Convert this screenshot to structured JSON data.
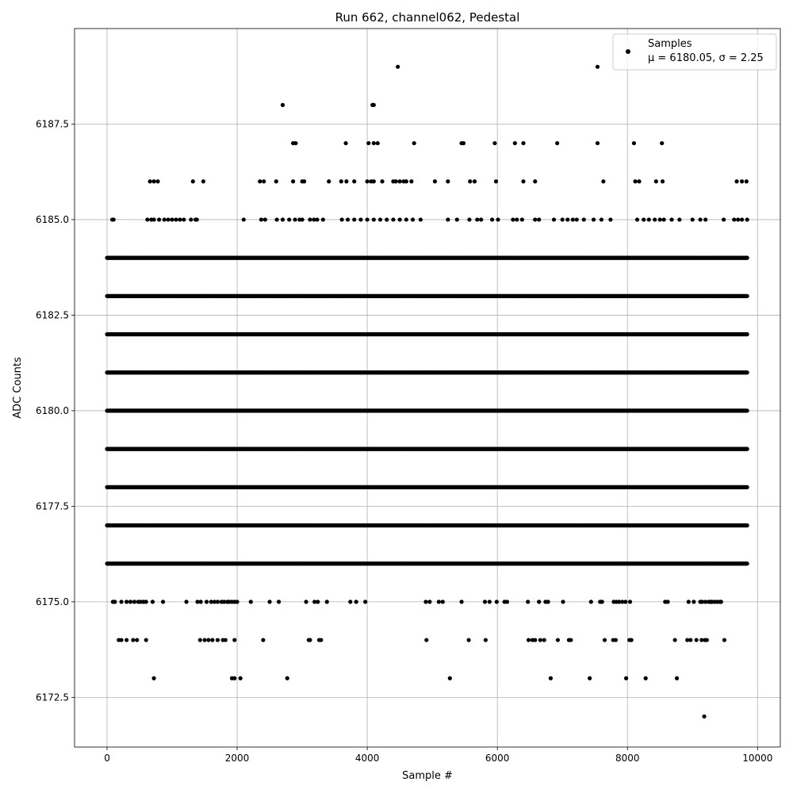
{
  "chart_data": {
    "type": "scatter",
    "title": "Run 662, channel062, Pedestal",
    "xlabel": "Sample #",
    "ylabel": "ADC Counts",
    "xlim": [
      -500,
      10350
    ],
    "ylim": [
      6171.2,
      6190.0
    ],
    "xticks": [
      0,
      2000,
      4000,
      6000,
      8000,
      10000
    ],
    "xtick_labels": [
      "0",
      "2000",
      "4000",
      "6000",
      "8000",
      "10000"
    ],
    "yticks": [
      6172.5,
      6175.0,
      6177.5,
      6180.0,
      6182.5,
      6185.0,
      6187.5
    ],
    "ytick_labels": [
      "6172.5",
      "6175.0",
      "6177.5",
      "6180.0",
      "6182.5",
      "6185.0",
      "6187.5"
    ],
    "grid": true,
    "legend_position": "top-right",
    "series": [
      {
        "name": "Samples",
        "stats_label": "μ = 6180.05, σ = 2.25",
        "color": "#000000",
        "marker": "circle",
        "n_samples": 9850,
        "sampling": "every 10th sample shown for levels 6176–6184; all visible outliers listed",
        "rows": [
          {
            "y": 6176,
            "step": 10,
            "x_start": 0,
            "x_end": 9840
          },
          {
            "y": 6177,
            "step": 10,
            "x_start": 0,
            "x_end": 9840
          },
          {
            "y": 6178,
            "step": 10,
            "x_start": 0,
            "x_end": 9840
          },
          {
            "y": 6179,
            "step": 10,
            "x_start": 0,
            "x_end": 9840
          },
          {
            "y": 6180,
            "step": 10,
            "x_start": 0,
            "x_end": 9840
          },
          {
            "y": 6181,
            "step": 10,
            "x_start": 0,
            "x_end": 9840
          },
          {
            "y": 6182,
            "step": 10,
            "x_start": 0,
            "x_end": 9840
          },
          {
            "y": 6183,
            "step": 10,
            "x_start": 0,
            "x_end": 9840
          },
          {
            "y": 6184,
            "step": 10,
            "x_start": 0,
            "x_end": 9840
          }
        ],
        "points": [
          {
            "y": 6172,
            "x": [
              9180
            ]
          },
          {
            "y": 6173,
            "x": [
              720,
              1920,
              1960,
              2050,
              2770,
              5270,
              6820,
              7420,
              7980,
              8280,
              8760
            ]
          },
          {
            "y": 6174,
            "x": [
              180,
              220,
              300,
              400,
              460,
              600,
              1430,
              1500,
              1560,
              1620,
              1700,
              1780,
              1820,
              1960,
              2400,
              3100,
              3120,
              3260,
              3290,
              4910,
              5560,
              5820,
              6480,
              6540,
              6580,
              6660,
              6720,
              6930,
              7100,
              7130,
              7650,
              7780,
              7820,
              8030,
              8060,
              8730,
              8920,
              8970,
              9060,
              9140,
              9190,
              9220,
              9490
            ]
          },
          {
            "y": 6175,
            "x": [
              90,
              120,
              220,
              300,
              360,
              420,
              480,
              520,
              560,
              600,
              700,
              860,
              1220,
              1390,
              1440,
              1530,
              1600,
              1650,
              1700,
              1760,
              1800,
              1850,
              1880,
              1920,
              1960,
              2000,
              2210,
              2500,
              2640,
              3060,
              3190,
              3240,
              3380,
              3740,
              3830,
              3970,
              4900,
              4960,
              5100,
              5160,
              5450,
              5810,
              5880,
              5990,
              6110,
              6150,
              6470,
              6640,
              6740,
              6780,
              7010,
              7440,
              7580,
              7610,
              7790,
              7830,
              7870,
              7920,
              7970,
              8040,
              8580,
              8620,
              8940,
              9020,
              9120,
              9150,
              9200,
              9250,
              9280,
              9300,
              9340,
              9380,
              9420,
              9440
            ]
          },
          {
            "y": 6185,
            "x": [
              80,
              100,
              620,
              680,
              720,
              800,
              880,
              940,
              1000,
              1060,
              1120,
              1180,
              1290,
              1360,
              1380,
              2100,
              2370,
              2430,
              2610,
              2700,
              2800,
              2890,
              2960,
              3000,
              3120,
              3180,
              3230,
              3320,
              3610,
              3700,
              3800,
              3900,
              4000,
              4100,
              4200,
              4300,
              4400,
              4500,
              4600,
              4700,
              4820,
              5240,
              5380,
              5570,
              5690,
              5750,
              5920,
              6010,
              6240,
              6300,
              6380,
              6580,
              6640,
              6870,
              7000,
              7080,
              7160,
              7220,
              7330,
              7480,
              7600,
              7740,
              8150,
              8250,
              8330,
              8420,
              8500,
              8560,
              8680,
              8800,
              9000,
              9120,
              9200,
              9480,
              9640,
              9700,
              9760,
              9840
            ]
          },
          {
            "y": 6186,
            "x": [
              660,
              720,
              780,
              1320,
              1480,
              2350,
              2410,
              2600,
              2860,
              3000,
              3030,
              3410,
              3600,
              3680,
              3800,
              4000,
              4060,
              4100,
              4230,
              4400,
              4440,
              4500,
              4560,
              4600,
              4680,
              5040,
              5240,
              5580,
              5650,
              5980,
              6400,
              6580,
              7630,
              8120,
              8180,
              8440,
              8540,
              9680,
              9760,
              9830
            ]
          },
          {
            "y": 6187,
            "x": [
              2860,
              2900,
              3670,
              4020,
              4100,
              4160,
              4720,
              5450,
              5480,
              5960,
              6270,
              6400,
              6920,
              7540,
              8100,
              8530
            ]
          },
          {
            "y": 6188,
            "x": [
              2700,
              4080,
              4100
            ]
          },
          {
            "y": 6189,
            "x": [
              4470,
              7540
            ]
          }
        ]
      }
    ]
  }
}
